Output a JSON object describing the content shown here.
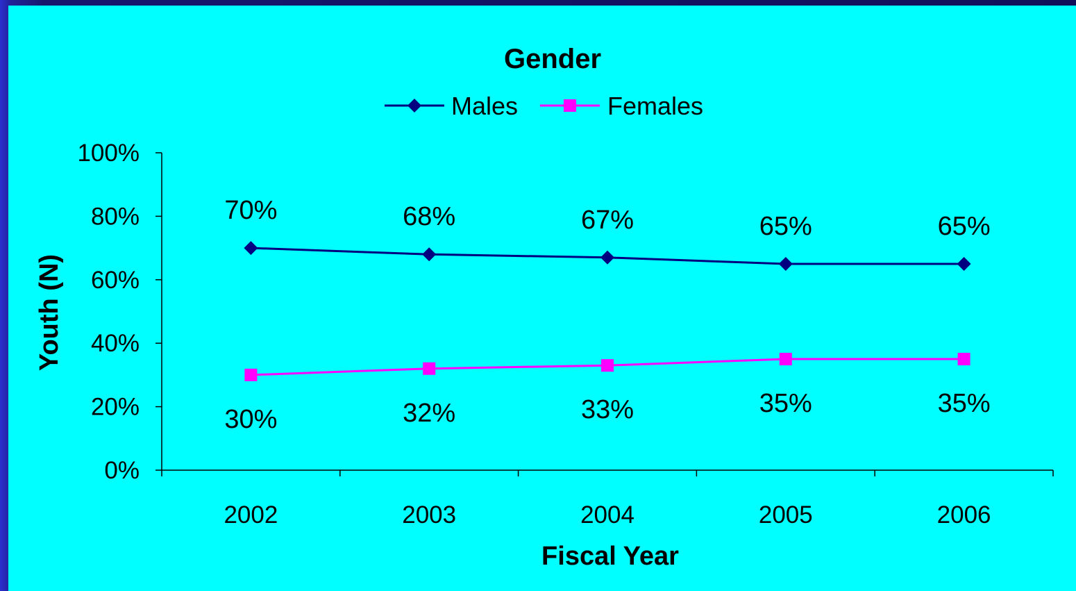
{
  "colors": {
    "panel_background": "#00ffff",
    "axis": "#000000",
    "males": "#000080",
    "females": "#ff00ff"
  },
  "chart_data": {
    "type": "line",
    "title": "Gender",
    "xlabel": "Fiscal Year",
    "ylabel": "Youth (N)",
    "categories": [
      "2002",
      "2003",
      "2004",
      "2005",
      "2006"
    ],
    "y_ticks": [
      "0%",
      "20%",
      "40%",
      "60%",
      "80%",
      "100%"
    ],
    "ylim": [
      0,
      100
    ],
    "legend_position": "top-center",
    "grid": false,
    "series": [
      {
        "name": "Males",
        "marker": "diamond",
        "color": "#000080",
        "values": [
          70,
          68,
          67,
          65,
          65
        ],
        "labels": [
          "70%",
          "68%",
          "67%",
          "65%",
          "65%"
        ]
      },
      {
        "name": "Females",
        "marker": "square",
        "color": "#ff00ff",
        "values": [
          30,
          32,
          33,
          35,
          35
        ],
        "labels": [
          "30%",
          "32%",
          "33%",
          "35%",
          "35%"
        ]
      }
    ]
  }
}
